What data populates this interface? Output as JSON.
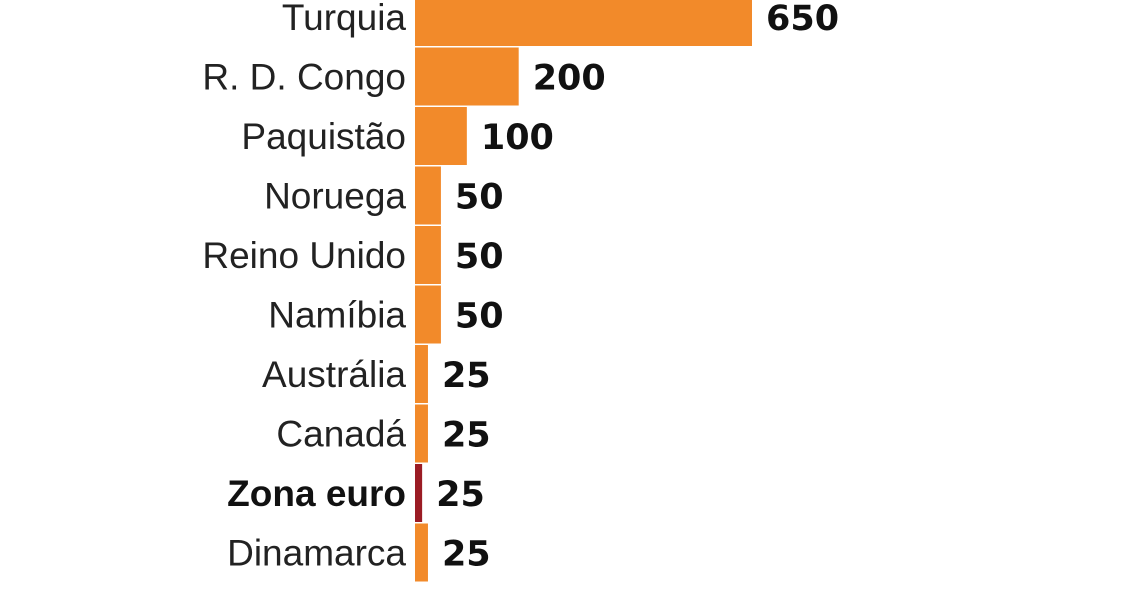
{
  "chart_data": {
    "type": "bar",
    "orientation": "horizontal",
    "title": "",
    "xlabel": "",
    "ylabel": "",
    "grid": false,
    "legend": "none",
    "categories": [
      "Turquia",
      "R. D. Congo",
      "Paquistão",
      "Noruega",
      "Reino Unido",
      "Namíbia",
      "Austrália",
      "Canadá",
      "Zona euro",
      "Dinamarca"
    ],
    "values": [
      650,
      200,
      100,
      50,
      50,
      50,
      25,
      25,
      25,
      25
    ],
    "value_labels": [
      "650",
      "200",
      "100",
      "50",
      "50",
      "50",
      "25",
      "25",
      "25",
      "25"
    ],
    "highlighted": [
      false,
      false,
      false,
      false,
      false,
      false,
      false,
      false,
      true,
      false
    ],
    "colors": {
      "bar": "#f28a2a",
      "highlight": "#9b1c24",
      "text": "#222222"
    }
  }
}
